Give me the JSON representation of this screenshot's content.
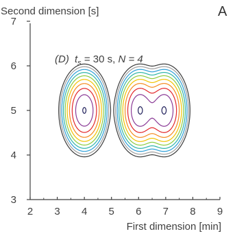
{
  "chart_data": {
    "type": "contour",
    "panel_label": "A",
    "xlabel": "First dimension [min]",
    "ylabel": "Second dimension [s]",
    "xlim": [
      2,
      9
    ],
    "ylim": [
      3,
      7.2
    ],
    "x_ticks": [
      2,
      3,
      4,
      5,
      6,
      7,
      8,
      9
    ],
    "y_ticks": [
      3,
      4,
      5,
      6,
      7
    ],
    "x_tick_labels": [
      "2",
      "3",
      "4",
      "5",
      "6",
      "7",
      "8",
      "9"
    ],
    "y_tick_labels": [
      "3",
      "4",
      "5",
      "6",
      "7"
    ],
    "annotation": {
      "label": "(D)",
      "time_var": "t",
      "time_sub": "s",
      "time_val": " = 30 s, ",
      "n_text": "N = 4"
    },
    "contour_colors": [
      "#3a3a3a",
      "#9d9d9d",
      "#2e9fd8",
      "#2fb5a8",
      "#8ccb3f",
      "#f2c200",
      "#f58a1f",
      "#e2262a",
      "#8a3a96",
      "#1f1f5a"
    ],
    "peaks": [
      {
        "x": 4.0,
        "y": 5.0,
        "amplitude": 1.0,
        "sigma_x": 0.3,
        "sigma_y": 0.33
      },
      {
        "x": 6.05,
        "y": 5.0,
        "amplitude": 1.0,
        "sigma_x": 0.3,
        "sigma_y": 0.33
      },
      {
        "x": 6.95,
        "y": 5.0,
        "amplitude": 1.0,
        "sigma_x": 0.3,
        "sigma_y": 0.33
      }
    ]
  }
}
